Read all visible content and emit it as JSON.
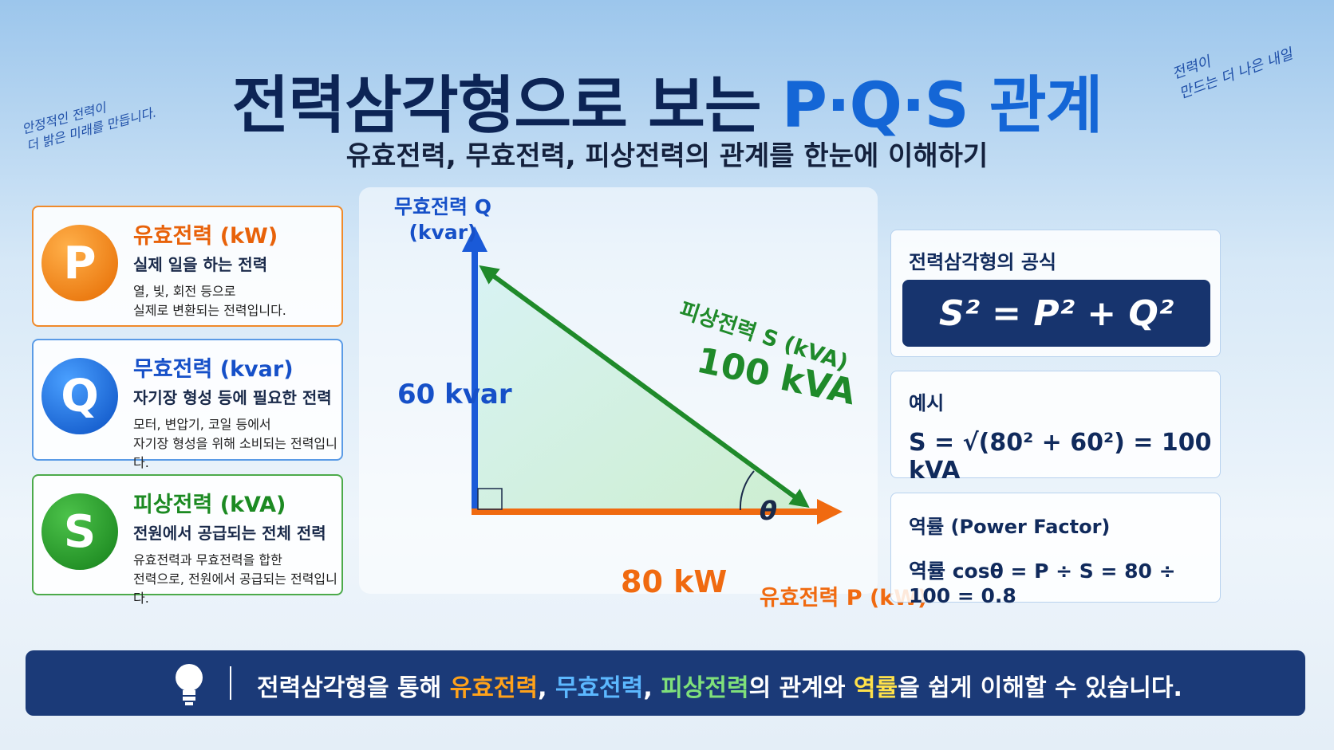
{
  "header": {
    "title_main": "전력삼각형으로 보는 ",
    "title_accent": "P·Q·S 관계",
    "subtitle": "유효전력, 무효전력, 피상전력의 관계를 한눈에 이해하기"
  },
  "side_notes": {
    "left": [
      "안정적인 전력이",
      "더 밝은 미래를 만듭니다."
    ],
    "right": [
      "전력이",
      "만드는 더 나은 내일"
    ]
  },
  "cards": [
    {
      "letter": "P",
      "title": "유효전력 (kW)",
      "subtitle": "실제 일을 하는 전력",
      "description": [
        "열, 빛, 회전 등으로",
        "실제로 변환되는 전력입니다."
      ]
    },
    {
      "letter": "Q",
      "title": "무효전력 (kvar)",
      "subtitle": "자기장 형성 등에 필요한 전력",
      "description": [
        "모터, 변압기, 코일 등에서",
        "자기장 형성을 위해 소비되는 전력입니다."
      ]
    },
    {
      "letter": "S",
      "title": "피상전력 (kVA)",
      "subtitle": "전원에서 공급되는 전체 전력",
      "description": [
        "유효전력과 무효전력을 합한",
        "전력으로, 전원에서 공급되는 전력입니다."
      ]
    }
  ],
  "triangle": {
    "y_axis_label": [
      "무효전력 Q",
      "(kvar)"
    ],
    "x_axis_label": "유효전력 P (kW)",
    "hypotenuse_label": "피상전력 S (kVA)",
    "q_value": "60 kvar",
    "p_value": "80 kW",
    "s_value": "100 kVA",
    "angle": "θ"
  },
  "panels": {
    "formula_title": "전력삼각형의 공식",
    "formula": "S² = P² + Q²",
    "example_title": "예시",
    "example": "S = √(80² + 60²) = 100 kVA",
    "pf_title": "역률 (Power Factor)",
    "pf_formula": "역률 cosθ = P ÷ S = 80 ÷ 100 = 0.8"
  },
  "footer": {
    "segments": [
      {
        "text": "전력삼각형을 통해 ",
        "color": "#ffffff"
      },
      {
        "text": "유효전력",
        "color": "#ffa21a"
      },
      {
        "text": ", ",
        "color": "#ffffff"
      },
      {
        "text": "무효전력",
        "color": "#5cb8ff"
      },
      {
        "text": ", ",
        "color": "#ffffff"
      },
      {
        "text": "피상전력",
        "color": "#7fe07a"
      },
      {
        "text": "의 관계와 ",
        "color": "#ffffff"
      },
      {
        "text": "역률",
        "color": "#ffe14a"
      },
      {
        "text": "을 쉽게 이해할 수 있습니다.",
        "color": "#ffffff"
      }
    ]
  }
}
